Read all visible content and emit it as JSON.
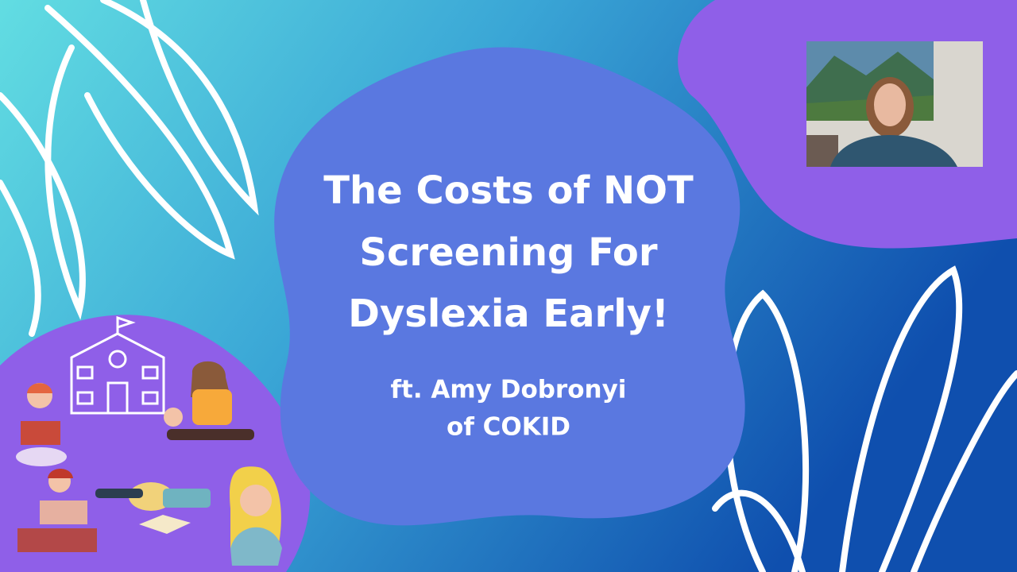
{
  "title": {
    "lines": [
      "The Costs of NOT",
      "Screening For",
      "Dyslexia Early!"
    ]
  },
  "subtitle": {
    "lines": [
      "ft. Amy Dobronyi",
      "of COKID"
    ]
  }
}
